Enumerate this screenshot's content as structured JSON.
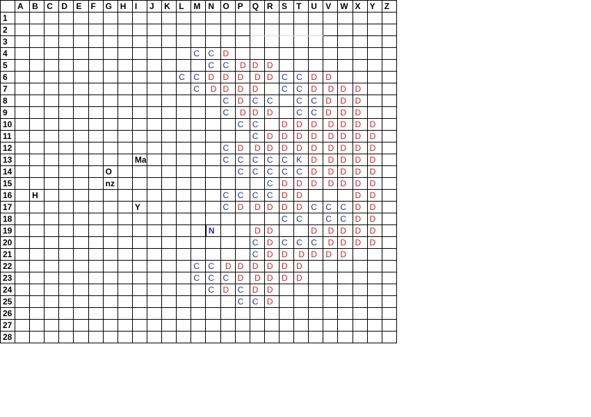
{
  "colors": {
    "C": "#1f2fa8",
    "K": "#1f2fa8",
    "N": "#1f2fa8",
    "D": "#d42020",
    "other": "#000000"
  },
  "grid": {
    "columns": [
      "A",
      "B",
      "C",
      "D",
      "E",
      "F",
      "G",
      "H",
      "I",
      "J",
      "K",
      "L",
      "M",
      "N",
      "O",
      "P",
      "Q",
      "R",
      "S",
      "T",
      "U",
      "V",
      "W",
      "X",
      "Y",
      "Z"
    ],
    "rows": [
      {
        "label": "1",
        "cells": {}
      },
      {
        "label": "2",
        "cells": {}
      },
      {
        "label": "3",
        "cells": {}
      },
      {
        "label": "4",
        "cells": {
          "M": "C",
          "N": "C",
          "O": "D"
        }
      },
      {
        "label": "5",
        "cells": {
          "N": "C",
          "O": "C",
          "P": " D",
          "Q": "D",
          "R": "D"
        }
      },
      {
        "label": "6",
        "cells": {
          "L": "C",
          "M": "C",
          "N": "D",
          "O": "D",
          "P": "D",
          "Q": " D",
          "R": "D",
          "S": "C",
          "T": "C",
          "U": "D",
          "V": "D"
        }
      },
      {
        "label": "7",
        "cells": {
          "M": "C",
          "N": " D",
          "O": "D",
          "P": "D",
          "Q": "D",
          "S": "C",
          "T": "C",
          "U": "D",
          "V": " D",
          "W": "D",
          "X": "D"
        }
      },
      {
        "label": "8",
        "cells": {
          "O": "C",
          "P": "D",
          "Q": "C",
          "R": "C",
          "T": "C",
          "U": "C",
          "V": "D",
          "W": "D",
          "X": "D"
        }
      },
      {
        "label": "9",
        "cells": {
          "O": "C",
          "P": " D",
          "Q": "D",
          "R": "D",
          "T": "C",
          "U": "C",
          "V": "D",
          "W": "D",
          "X": "D"
        }
      },
      {
        "label": "10",
        "cells": {
          "P": "C",
          "Q": "C",
          "S": "D",
          "T": "D",
          "U": "D",
          "V": " D",
          "W": "D",
          "X": "D",
          "Y": "D"
        }
      },
      {
        "label": "11",
        "cells": {
          "Q": "C",
          "R": "D",
          "S": "D",
          "T": "D",
          "U": "D",
          "V": " D",
          "W": "D",
          "X": "D",
          "Y": "D"
        }
      },
      {
        "label": "12",
        "cells": {
          "O": "C",
          "P": "D",
          "Q": " D",
          "R": "D",
          "S": "D",
          "T": "D",
          "U": "D",
          "V": " D",
          "W": "D",
          "X": "D",
          "Y": "D"
        }
      },
      {
        "label": "13",
        "cells": {
          "I": "Ma",
          "O": "C",
          "P": "C",
          "Q": "C",
          "R": "C",
          "S": "C",
          "T": "K",
          "U": "D",
          "V": " D",
          "W": "D",
          "X": "D",
          "Y": "D"
        }
      },
      {
        "label": "14",
        "cells": {
          "G": "O",
          "P": "C",
          "Q": "C",
          "R": "C",
          "S": "C",
          "T": "C",
          "U": "D",
          "V": " D",
          "W": "D",
          "X": "D",
          "Y": "D"
        }
      },
      {
        "label": "15",
        "cells": {
          "G": "nz",
          "R": "C",
          "S": "D",
          "T": "D",
          "U": "D",
          "V": " D",
          "W": "D",
          "X": "D",
          "Y": "D"
        }
      },
      {
        "label": "16",
        "cells": {
          "B": "H",
          "O": "C",
          "P": "C",
          "Q": "C",
          "R": "C",
          "S": "D",
          "T": "D",
          "X": "D",
          "Y": "D"
        }
      },
      {
        "label": "17",
        "cells": {
          "I": "Y",
          "O": "C",
          "P": "D",
          "Q": " D",
          "R": "D",
          "S": "D",
          "T": "D",
          "U": "C",
          "V": "C",
          "W": "C",
          "X": "D",
          "Y": "D"
        }
      },
      {
        "label": "18",
        "cells": {
          "S": "C",
          "T": "C",
          "V": "C",
          "W": "C",
          "X": "D",
          "Y": "D"
        }
      },
      {
        "label": "19",
        "cells": {
          "N": "N",
          "Q": " D",
          "R": "D",
          "U": "D",
          "V": " D",
          "W": "D",
          "X": "D",
          "Y": "D"
        }
      },
      {
        "label": "20",
        "cells": {
          "Q": "C",
          "R": "D",
          "S": "C",
          "T": "C",
          "U": "C",
          "V": " D",
          "W": "D",
          "X": "D",
          "Y": "D"
        }
      },
      {
        "label": "21",
        "cells": {
          "Q": "C",
          "R": "D",
          "S": "D",
          "T": " D",
          "U": "D",
          "V": "D",
          "W": "D"
        }
      },
      {
        "label": "22",
        "cells": {
          "M": "C",
          "N": "C",
          "O": " D",
          "P": "D",
          "Q": "D",
          "R": "D",
          "S": "D",
          "T": "D"
        }
      },
      {
        "label": "23",
        "cells": {
          "M": "C",
          "N": "C",
          "O": "C",
          "P": "D",
          "Q": " D",
          "R": "D",
          "S": "D",
          "T": "D"
        }
      },
      {
        "label": "24",
        "cells": {
          "N": "C",
          "O": "D",
          "P": "C",
          "Q": "D",
          "R": "D"
        }
      },
      {
        "label": "25",
        "cells": {
          "P": "C",
          "Q": "C",
          "R": "D"
        }
      },
      {
        "label": "26",
        "cells": {}
      },
      {
        "label": "27",
        "cells": {}
      },
      {
        "label": "28",
        "cells": {}
      }
    ]
  }
}
